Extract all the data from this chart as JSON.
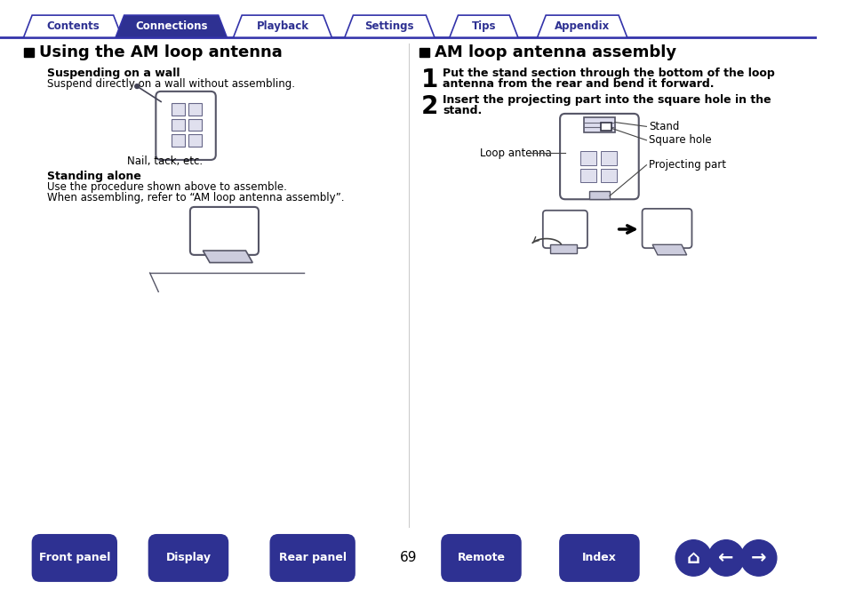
{
  "page_bg": "#ffffff",
  "top_line_color": "#3333aa",
  "tab_bg_inactive": "#ffffff",
  "tab_bg_active": "#2e3192",
  "tab_border_color": "#3333aa",
  "tab_text_inactive": "#2e3192",
  "tab_text_active": "#ffffff",
  "tab_labels": [
    "Contents",
    "Connections",
    "Playback",
    "Settings",
    "Tips",
    "Appendix"
  ],
  "tab_active_index": 1,
  "section_left_title": "Using the AM loop antenna",
  "section_right_title": "AM loop antenna assembly",
  "left_sub1_bold": "Suspending on a wall",
  "left_sub1_text": "Suspend directly on a wall without assembling.",
  "left_nail_label": "Nail, tack, etc.",
  "left_sub2_bold": "Standing alone",
  "left_sub2_line1": "Use the procedure shown above to assemble.",
  "left_sub2_line2": "When assembling, refer to “AM loop antenna assembly”.",
  "right_step1_line1": "Put the stand section through the bottom of the loop",
  "right_step1_line2": "antenna from the rear and bend it forward.",
  "right_step2_line1": "Insert the projecting part into the square hole in the",
  "right_step2_line2": "stand.",
  "right_label_stand": "Stand",
  "right_label_square": "Square hole",
  "right_label_loop": "Loop antenna",
  "right_label_proj": "Projecting part",
  "bottom_buttons": [
    "Front panel",
    "Display",
    "Rear panel",
    "Remote",
    "Index"
  ],
  "page_number": "69",
  "dark_blue": "#2e3192",
  "body_text_color": "#000000"
}
